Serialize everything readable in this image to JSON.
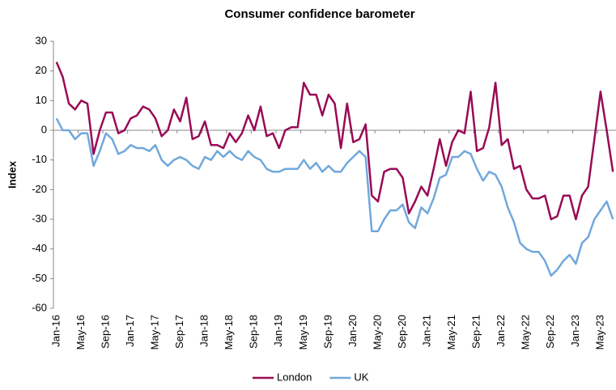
{
  "chart_data": {
    "type": "line",
    "title": "Consumer confidence barometer",
    "y_label": "Index",
    "categories": [
      "Jan-16",
      null,
      null,
      null,
      "May-16",
      null,
      null,
      null,
      "Sep-16",
      null,
      null,
      null,
      "Jan-17",
      null,
      null,
      null,
      "May-17",
      null,
      null,
      null,
      "Sep-17",
      null,
      null,
      null,
      "Jan-18",
      null,
      null,
      null,
      "May-18",
      null,
      null,
      null,
      "Sep-18",
      null,
      null,
      null,
      "Jan-19",
      null,
      null,
      null,
      "May-19",
      null,
      null,
      null,
      "Sep-19",
      null,
      null,
      null,
      "Jan-20",
      null,
      null,
      null,
      "May-20",
      null,
      null,
      null,
      "Sep-20",
      null,
      null,
      null,
      "Jan-21",
      null,
      null,
      null,
      "May-21",
      null,
      null,
      null,
      "Sep-21",
      null,
      null,
      null,
      "Jan-22",
      null,
      null,
      null,
      "May-22",
      null,
      null,
      null,
      "Sep-22",
      null,
      null,
      null,
      "Jan-23",
      null,
      null,
      null,
      "May-23",
      null,
      null
    ],
    "series": [
      {
        "name": "London",
        "color": "#990a55",
        "values": [
          23,
          18,
          9,
          7,
          10,
          9,
          -8,
          0,
          6,
          6,
          -1,
          0,
          4,
          5,
          8,
          7,
          4,
          -2,
          0,
          7,
          3,
          11,
          -3,
          -2,
          3,
          -5,
          -5,
          -6,
          -1,
          -4,
          -1,
          5,
          0,
          8,
          -2,
          -1,
          -6,
          0,
          1,
          1,
          16,
          12,
          12,
          5,
          12,
          9,
          -6,
          9,
          -4,
          -3,
          2,
          -22,
          -24,
          -14,
          -13,
          -13,
          -16,
          -28,
          -24,
          -19,
          -22,
          -13,
          -3,
          -12,
          -4,
          0,
          -1,
          13,
          -7,
          -6,
          1,
          16,
          -5,
          -3,
          -13,
          -12,
          -20,
          -23,
          -23,
          -22,
          -30,
          -29,
          -22,
          -22,
          -30,
          -22,
          -19,
          -3,
          13,
          0,
          -14
        ]
      },
      {
        "name": "UK",
        "color": "#70a8dc",
        "values": [
          4,
          0,
          0,
          -3,
          -1,
          -1,
          -12,
          -7,
          -1,
          -3,
          -8,
          -7,
          -5,
          -6,
          -6,
          -7,
          -5,
          -10,
          -12,
          -10,
          -9,
          -10,
          -12,
          -13,
          -9,
          -10,
          -7,
          -9,
          -7,
          -9,
          -10,
          -7,
          -9,
          -10,
          -13,
          -14,
          -14,
          -13,
          -13,
          -13,
          -10,
          -13,
          -11,
          -14,
          -12,
          -14,
          -14,
          -11,
          -9,
          -7,
          -9,
          -34,
          -34,
          -30,
          -27,
          -27,
          -25,
          -31,
          -33,
          -26,
          -28,
          -23,
          -16,
          -15,
          -9,
          -9,
          -7,
          -8,
          -13,
          -17,
          -14,
          -15,
          -19,
          -26,
          -31,
          -38,
          -40,
          -41,
          -41,
          -44,
          -49,
          -47,
          -44,
          -42,
          -45,
          -38,
          -36,
          -30,
          -27,
          -24,
          -30
        ]
      }
    ],
    "ylim": [
      -60,
      30
    ],
    "yticks": [
      -60,
      -50,
      -40,
      -30,
      -20,
      -10,
      0,
      10,
      20,
      30
    ],
    "grid": false,
    "legend": "bottom"
  }
}
